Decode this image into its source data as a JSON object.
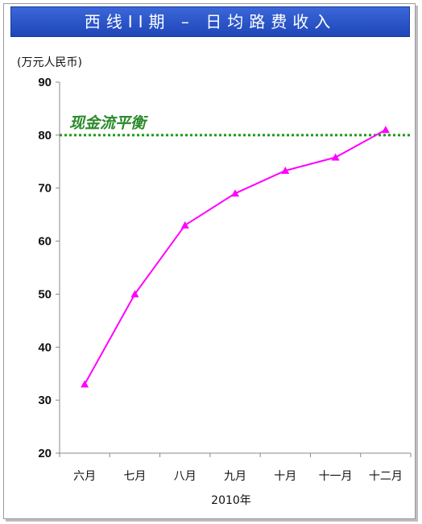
{
  "chart_data": {
    "type": "line",
    "title": "西线II期 – 日均路费收入",
    "ylabel": "(万元人民币)",
    "xlabel": "2010年",
    "categories": [
      "六月",
      "七月",
      "八月",
      "九月",
      "十月",
      "十一月",
      "十二月"
    ],
    "series": [
      {
        "values": [
          33,
          50,
          63,
          69,
          73.3,
          75.8,
          81
        ],
        "color": "#ff00ff",
        "marker": "triangle"
      }
    ],
    "ylim": [
      20,
      90
    ],
    "yticks": [
      "20",
      "30",
      "40",
      "50",
      "60",
      "70",
      "80",
      "90"
    ],
    "reference_line": {
      "label": "现金流平衡",
      "value": 80,
      "color": "#1a9a1a",
      "style": "dotted"
    },
    "grid": false,
    "legend": "none"
  }
}
